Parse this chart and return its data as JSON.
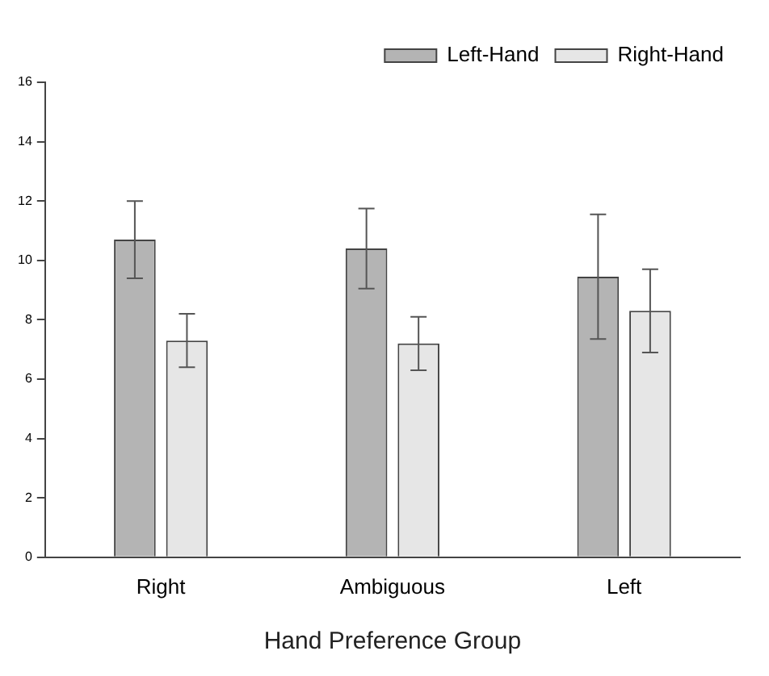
{
  "chart_data": {
    "type": "bar",
    "xlabel": "Hand Preference Group",
    "categories": [
      "Right",
      "Ambiguous",
      "Left"
    ],
    "series": [
      {
        "name": "Left-Hand",
        "color": "#b4b4b4",
        "values": [
          10.7,
          10.4,
          9.45
        ],
        "errors": [
          1.3,
          1.35,
          2.1
        ]
      },
      {
        "name": "Right-Hand",
        "color": "#e6e6e6",
        "values": [
          7.3,
          7.2,
          8.3
        ],
        "errors": [
          0.9,
          0.9,
          1.4
        ]
      }
    ],
    "ylim": [
      0,
      16
    ],
    "yticks": [
      0,
      2,
      4,
      6,
      8,
      10,
      12,
      14,
      16
    ],
    "grid": false,
    "legend": "top right"
  }
}
